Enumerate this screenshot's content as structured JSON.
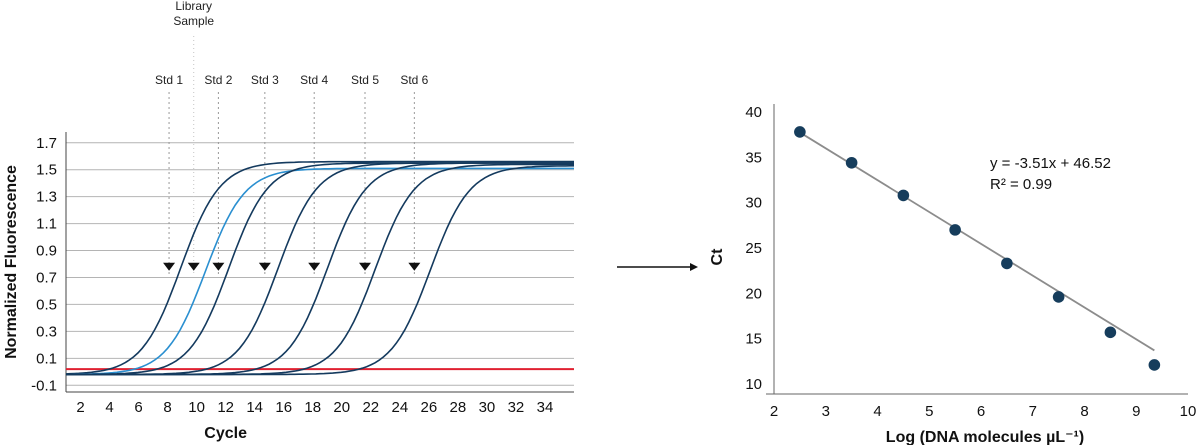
{
  "chart_data": [
    {
      "type": "line",
      "title": "",
      "xlabel": "Cycle",
      "ylabel": "Normalized Fluorescence",
      "xlim": [
        1,
        36
      ],
      "ylim": [
        -0.15,
        1.78
      ],
      "xticks": [
        2,
        4,
        6,
        8,
        10,
        12,
        14,
        16,
        18,
        20,
        22,
        24,
        26,
        28,
        30,
        32,
        34
      ],
      "yticks": [
        -0.1,
        0.1,
        0.3,
        0.5,
        0.7,
        0.9,
        1.1,
        1.3,
        1.5,
        1.7
      ],
      "ytick_labels": [
        "-0.1",
        "0.1",
        "0.3",
        "0.5",
        "0.7",
        "0.9",
        "1.1",
        "1.3",
        "1.5",
        "1.7"
      ],
      "grid": true,
      "threshold": {
        "y": 0.02,
        "color": "#e02030"
      },
      "series": [
        {
          "midpoint": 8.9,
          "plateau": 1.56,
          "color": "#143a5e"
        },
        {
          "midpoint": 10.6,
          "plateau": 1.51,
          "color": "#2a8fd0"
        },
        {
          "midpoint": 12.2,
          "plateau": 1.55,
          "color": "#143a5e"
        },
        {
          "midpoint": 15.6,
          "plateau": 1.55,
          "color": "#143a5e"
        },
        {
          "midpoint": 19.0,
          "plateau": 1.55,
          "color": "#143a5e"
        },
        {
          "midpoint": 22.3,
          "plateau": 1.54,
          "color": "#143a5e"
        },
        {
          "midpoint": 26.1,
          "plateau": 1.53,
          "color": "#143a5e"
        }
      ],
      "markers": [
        {
          "label": "Std 1",
          "x": 8.1
        },
        {
          "label": "Std 2",
          "x": 11.5
        },
        {
          "label": "Std 3",
          "x": 14.7
        },
        {
          "label": "Std 4",
          "x": 18.1
        },
        {
          "label": "Std 5",
          "x": 21.6
        },
        {
          "label": "Std 6",
          "x": 25.0
        }
      ],
      "library_marker": {
        "label_line1": "Library",
        "label_line2": "Sample",
        "x": 9.8
      },
      "arrowheads": [
        {
          "x": 8.1,
          "y": 0.78
        },
        {
          "x": 9.8,
          "y": 0.78
        },
        {
          "x": 11.5,
          "y": 0.78
        },
        {
          "x": 14.7,
          "y": 0.78
        },
        {
          "x": 18.1,
          "y": 0.78
        },
        {
          "x": 21.6,
          "y": 0.78
        },
        {
          "x": 25.0,
          "y": 0.78
        }
      ]
    },
    {
      "type": "scatter",
      "title": "",
      "xlabel": "Log (DNA molecules µL⁻¹)",
      "ylabel": "Ct",
      "xlim": [
        2,
        10
      ],
      "ylim": [
        10,
        40
      ],
      "xticks": [
        2,
        3,
        4,
        5,
        6,
        7,
        8,
        9,
        10
      ],
      "yticks": [
        10,
        15,
        20,
        25,
        30,
        35,
        40
      ],
      "points": [
        {
          "x": 2.5,
          "y": 37.8
        },
        {
          "x": 3.5,
          "y": 34.4
        },
        {
          "x": 4.5,
          "y": 30.8
        },
        {
          "x": 5.5,
          "y": 27.0
        },
        {
          "x": 6.5,
          "y": 23.3
        },
        {
          "x": 7.5,
          "y": 19.6
        },
        {
          "x": 8.5,
          "y": 15.7
        },
        {
          "x": 9.35,
          "y": 12.1
        }
      ],
      "fit": {
        "slope": -3.51,
        "intercept": 46.52
      },
      "equation": "y = -3.51x + 46.52",
      "r2_label": "R² = 0.99",
      "point_color": "#163d5c",
      "line_color": "#8c8c8c"
    }
  ]
}
